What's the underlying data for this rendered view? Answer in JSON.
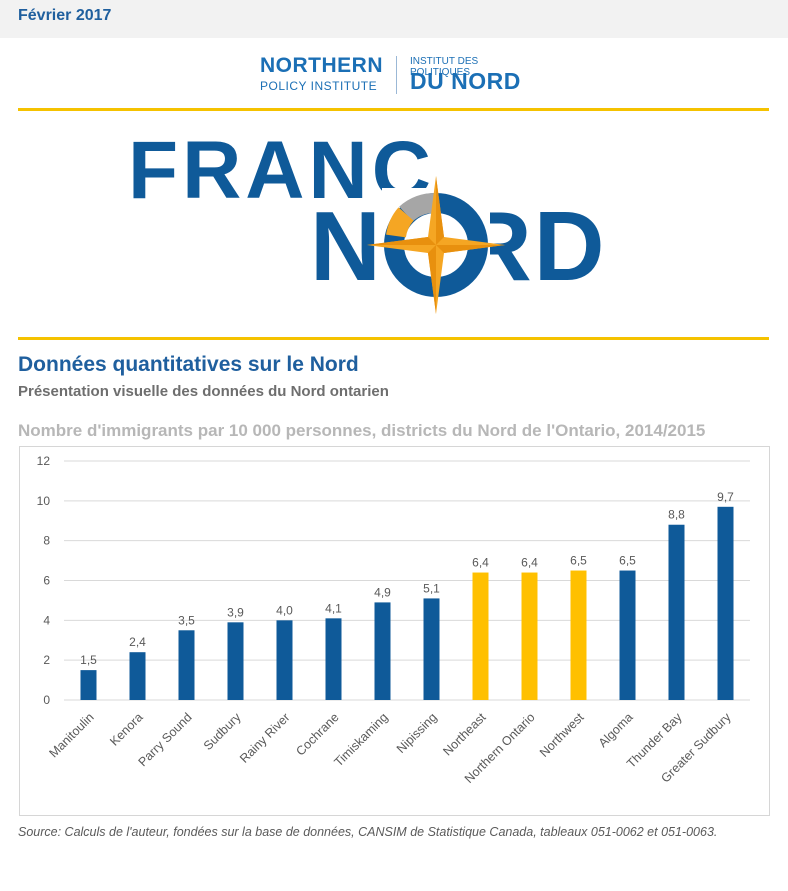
{
  "header": {
    "date": "Février 2017"
  },
  "logo": {
    "left_line1": "NORTHERN",
    "left_line2": "POLICY INSTITUTE",
    "right_line1": "INSTITUT DES POLITIQUES",
    "right_line2": "DU NORD"
  },
  "banner": {
    "word1": "FRANC",
    "word2": "NORD"
  },
  "section": {
    "title": "Données quantitatives sur le Nord",
    "subtitle": "Présentation visuelle des données du Nord ontarien"
  },
  "chart_data": {
    "type": "bar",
    "title": "Nombre d'immigrants par 10 000 personnes, districts du Nord de l'Ontario, 2014/2015",
    "xlabel": "",
    "ylabel": "",
    "ylim": [
      0,
      12
    ],
    "yticks": [
      0,
      2,
      4,
      6,
      8,
      10,
      12
    ],
    "grid": true,
    "categories": [
      "Manitoulin",
      "Kenora",
      "Parry Sound",
      "Sudbury",
      "Rainy River",
      "Cochrane",
      "Timiskaming",
      "Nipissing",
      "Northeast",
      "Northern Ontario",
      "Northwest",
      "Algoma",
      "Thunder Bay",
      "Greater Sudbury"
    ],
    "values": [
      1.5,
      2.4,
      3.5,
      3.9,
      4.0,
      4.1,
      4.9,
      5.1,
      6.4,
      6.4,
      6.5,
      6.5,
      8.8,
      9.7
    ],
    "value_labels": [
      "1,5",
      "2,4",
      "3,5",
      "3,9",
      "4,0",
      "4,1",
      "4,9",
      "5,1",
      "6,4",
      "6,4",
      "6,5",
      "6,5",
      "8,8",
      "9,7"
    ],
    "highlight": [
      false,
      false,
      false,
      false,
      false,
      false,
      false,
      false,
      true,
      true,
      true,
      false,
      false,
      false
    ],
    "colors": {
      "bar": "#0f5a99",
      "highlight": "#ffc000",
      "grid": "#d9d9d9",
      "label": "#595959"
    }
  },
  "source": "Source: Calculs de l'auteur, fondées sur la base de données, CANSIM de Statistique Canada, tableaux 051-0062 et 051-0063."
}
